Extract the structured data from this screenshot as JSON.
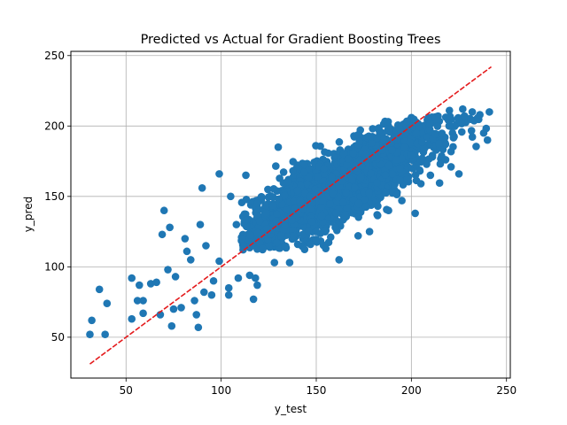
{
  "chart_data": {
    "type": "scatter",
    "title": "Predicted vs Actual for Gradient Boosting Trees",
    "xlabel": "y_test",
    "ylabel": "y_pred",
    "xlim": [
      21,
      252
    ],
    "ylim": [
      21,
      253
    ],
    "xticks": [
      50,
      100,
      150,
      200,
      250
    ],
    "yticks": [
      50,
      100,
      150,
      200,
      250
    ],
    "grid": true,
    "colors": {
      "points": "#1f77b4",
      "line": "#e41a1c",
      "grid": "#b0b0b0"
    },
    "reference_line": {
      "style": "dashed",
      "x": [
        31,
        242
      ],
      "y": [
        31,
        242
      ]
    },
    "highlighted_points": [
      {
        "x": 31,
        "y": 52
      },
      {
        "x": 32,
        "y": 62
      },
      {
        "x": 36,
        "y": 84
      },
      {
        "x": 39,
        "y": 52
      },
      {
        "x": 40,
        "y": 74
      },
      {
        "x": 53,
        "y": 63
      },
      {
        "x": 53,
        "y": 92
      },
      {
        "x": 56,
        "y": 76
      },
      {
        "x": 57,
        "y": 87
      },
      {
        "x": 59,
        "y": 76
      },
      {
        "x": 59,
        "y": 67
      },
      {
        "x": 63,
        "y": 88
      },
      {
        "x": 66,
        "y": 89
      },
      {
        "x": 68,
        "y": 66
      },
      {
        "x": 69,
        "y": 123
      },
      {
        "x": 70,
        "y": 140
      },
      {
        "x": 72,
        "y": 98
      },
      {
        "x": 73,
        "y": 128
      },
      {
        "x": 74,
        "y": 58
      },
      {
        "x": 75,
        "y": 70
      },
      {
        "x": 76,
        "y": 93
      },
      {
        "x": 79,
        "y": 71
      },
      {
        "x": 81,
        "y": 120
      },
      {
        "x": 82,
        "y": 111
      },
      {
        "x": 84,
        "y": 105
      },
      {
        "x": 86,
        "y": 76
      },
      {
        "x": 87,
        "y": 66
      },
      {
        "x": 88,
        "y": 57
      },
      {
        "x": 89,
        "y": 130
      },
      {
        "x": 90,
        "y": 156
      },
      {
        "x": 91,
        "y": 82
      },
      {
        "x": 92,
        "y": 115
      },
      {
        "x": 95,
        "y": 80
      },
      {
        "x": 96,
        "y": 90
      },
      {
        "x": 99,
        "y": 104
      },
      {
        "x": 99,
        "y": 166
      },
      {
        "x": 104,
        "y": 80
      },
      {
        "x": 104,
        "y": 85
      },
      {
        "x": 105,
        "y": 150
      },
      {
        "x": 108,
        "y": 130
      },
      {
        "x": 109,
        "y": 92
      },
      {
        "x": 111,
        "y": 120
      },
      {
        "x": 113,
        "y": 165
      },
      {
        "x": 115,
        "y": 94
      },
      {
        "x": 117,
        "y": 77
      },
      {
        "x": 118,
        "y": 92
      },
      {
        "x": 119,
        "y": 87
      },
      {
        "x": 122,
        "y": 113
      },
      {
        "x": 124,
        "y": 127
      },
      {
        "x": 128,
        "y": 103
      },
      {
        "x": 130,
        "y": 185
      },
      {
        "x": 136,
        "y": 103
      },
      {
        "x": 138,
        "y": 122
      },
      {
        "x": 147,
        "y": 116
      },
      {
        "x": 150,
        "y": 125
      },
      {
        "x": 155,
        "y": 113
      },
      {
        "x": 160,
        "y": 128
      },
      {
        "x": 162,
        "y": 105
      },
      {
        "x": 172,
        "y": 122
      },
      {
        "x": 178,
        "y": 125
      },
      {
        "x": 182,
        "y": 137
      },
      {
        "x": 188,
        "y": 140
      },
      {
        "x": 195,
        "y": 147
      },
      {
        "x": 202,
        "y": 138
      },
      {
        "x": 205,
        "y": 159
      },
      {
        "x": 210,
        "y": 165
      },
      {
        "x": 218,
        "y": 176
      },
      {
        "x": 225,
        "y": 166
      },
      {
        "x": 228,
        "y": 207
      },
      {
        "x": 232,
        "y": 210
      },
      {
        "x": 236,
        "y": 208
      },
      {
        "x": 238,
        "y": 195
      },
      {
        "x": 240,
        "y": 190
      },
      {
        "x": 241,
        "y": 210
      },
      {
        "x": 227,
        "y": 212
      },
      {
        "x": 220,
        "y": 211
      }
    ],
    "bulk_points": {
      "count": 2400,
      "x_range": [
        110,
        240
      ],
      "trend": {
        "slope": 0.68,
        "intercept": 48
      },
      "spread_sd": 12
    }
  }
}
